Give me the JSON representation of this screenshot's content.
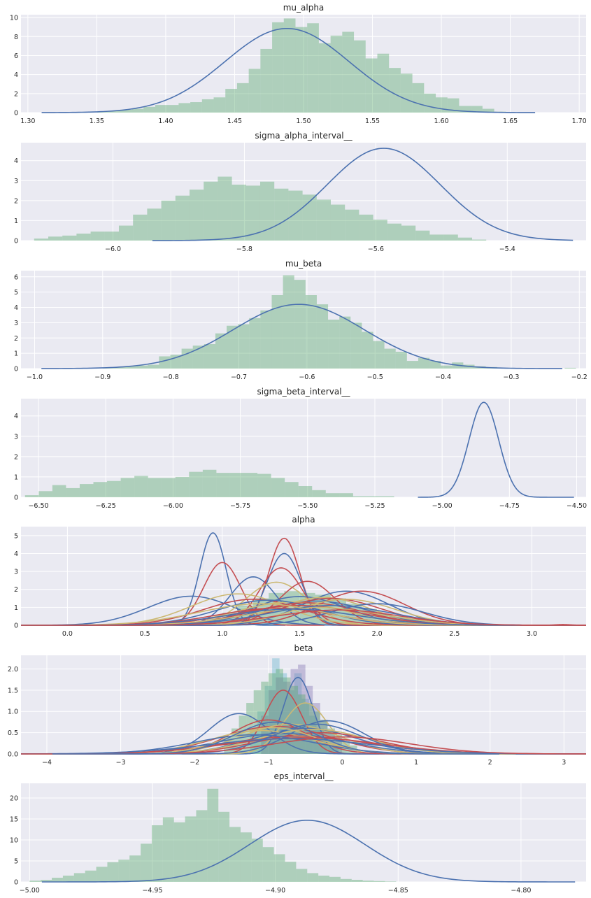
{
  "colors": {
    "axes_bg": "#eaeaf2",
    "grid": "#ffffff",
    "hist": "#55a868",
    "kde": "#4c72b0",
    "red": "#c44e52",
    "yellow": "#ccb974",
    "purple": "#8172b2",
    "cyan": "#64b5cd"
  },
  "chart_data": [
    {
      "type": "histogram+kde",
      "title": "mu_alpha",
      "xlim": [
        1.295,
        1.705
      ],
      "ylim": [
        0,
        10.3
      ],
      "xticks": [
        1.3,
        1.35,
        1.4,
        1.45,
        1.5,
        1.55,
        1.6,
        1.65,
        1.7
      ],
      "xtick_labels": [
        "1.30",
        "1.35",
        "1.40",
        "1.45",
        "1.50",
        "1.55",
        "1.60",
        "1.65",
        "1.70"
      ],
      "yticks": [
        0,
        2,
        4,
        6,
        8,
        10
      ],
      "ytick_labels": [
        "0",
        "2",
        "4",
        "6",
        "8",
        "10"
      ],
      "grid": true,
      "hist": {
        "bin_start": 1.35,
        "bin_width": 0.00848,
        "heights": [
          0.1,
          0.2,
          0.3,
          0.4,
          0.6,
          0.8,
          0.8,
          1.0,
          1.1,
          1.4,
          1.6,
          2.5,
          3.1,
          4.6,
          6.7,
          9.5,
          9.9,
          9.0,
          9.4,
          7.3,
          8.1,
          8.5,
          7.6,
          5.7,
          6.2,
          4.7,
          4.1,
          3.1,
          2.0,
          1.6,
          1.5,
          0.7,
          0.7,
          0.4,
          0.1,
          0.0,
          0.0,
          0.0,
          0.0,
          0.0,
          0.0,
          0.0,
          0.0,
          0.0,
          0.0,
          0.0,
          0.0,
          0.0,
          0.1
        ]
      },
      "kde": [
        {
          "type": "gaussian",
          "mean": 1.488,
          "sd": 0.045,
          "peak": 8.85,
          "x_range": [
            1.31,
            1.668
          ]
        }
      ]
    },
    {
      "type": "histogram+kde",
      "title": "sigma_alpha_interval__",
      "xlim": [
        -6.14,
        -5.28
      ],
      "ylim": [
        0,
        4.9
      ],
      "xticks": [
        -6.0,
        -5.8,
        -5.6,
        -5.4
      ],
      "xtick_labels": [
        "−6.0",
        "−5.8",
        "−5.6",
        "−5.4"
      ],
      "yticks": [
        0,
        1,
        2,
        3,
        4
      ],
      "ytick_labels": [
        "0",
        "1",
        "2",
        "3",
        "4"
      ],
      "grid": true,
      "hist": {
        "bin_start": -6.12,
        "bin_width": 0.0215,
        "heights": [
          0.1,
          0.2,
          0.25,
          0.35,
          0.45,
          0.45,
          0.75,
          1.3,
          1.6,
          2.0,
          2.25,
          2.55,
          2.95,
          3.2,
          2.8,
          2.75,
          2.95,
          2.6,
          2.5,
          2.3,
          2.05,
          1.8,
          1.55,
          1.3,
          1.05,
          0.85,
          0.75,
          0.5,
          0.3,
          0.3,
          0.15,
          0.05
        ]
      },
      "kde": [
        {
          "type": "gaussian",
          "mean": -5.588,
          "sd": 0.086,
          "peak": 4.62,
          "x_range": [
            -5.94,
            -5.3
          ]
        }
      ]
    },
    {
      "type": "histogram+kde",
      "title": "mu_beta",
      "xlim": [
        -1.02,
        -0.19
      ],
      "ylim": [
        0,
        6.4
      ],
      "xticks": [
        -1.0,
        -0.9,
        -0.8,
        -0.7,
        -0.6,
        -0.5,
        -0.4,
        -0.3,
        -0.2
      ],
      "xtick_labels": [
        "−1.0",
        "−0.9",
        "−0.8",
        "−0.7",
        "−0.6",
        "−0.5",
        "−0.4",
        "−0.3",
        "−0.2"
      ],
      "yticks": [
        0,
        1,
        2,
        3,
        4,
        5,
        6
      ],
      "ytick_labels": [
        "0",
        "1",
        "2",
        "3",
        "4",
        "5",
        "6"
      ],
      "grid": true,
      "hist": {
        "bin_start": -0.9,
        "bin_width": 0.01655,
        "heights": [
          0.05,
          0.1,
          0.15,
          0.2,
          0.25,
          0.8,
          0.9,
          1.3,
          1.5,
          1.6,
          2.3,
          2.8,
          2.9,
          3.3,
          3.8,
          4.8,
          6.1,
          5.8,
          4.8,
          4.2,
          3.2,
          3.4,
          3.0,
          2.4,
          1.8,
          1.3,
          1.1,
          0.5,
          0.7,
          0.5,
          0.2,
          0.4,
          0.25,
          0.15,
          0.1,
          0.05,
          0.0,
          0.0,
          0.0,
          0.0,
          0.0,
          0.05
        ]
      },
      "kde": [
        {
          "type": "gaussian",
          "mean": -0.612,
          "sd": 0.096,
          "peak": 4.2,
          "x_range": [
            -0.99,
            -0.225
          ]
        }
      ]
    },
    {
      "type": "histogram+kde",
      "title": "sigma_beta_interval__",
      "xlim": [
        -6.565,
        -4.465
      ],
      "ylim": [
        0,
        4.85
      ],
      "xticks": [
        -6.5,
        -6.25,
        -6.0,
        -5.75,
        -5.5,
        -5.25,
        -5.0,
        -4.75,
        -4.5
      ],
      "xtick_labels": [
        "−6.50",
        "−6.25",
        "−6.00",
        "−5.75",
        "−5.50",
        "−5.25",
        "−5.00",
        "−4.75",
        "−4.50"
      ],
      "yticks": [
        0,
        1,
        2,
        3,
        4
      ],
      "ytick_labels": [
        "0",
        "1",
        "2",
        "3",
        "4"
      ],
      "grid": true,
      "hist": {
        "bin_start": -6.55,
        "bin_width": 0.0508,
        "heights": [
          0.1,
          0.3,
          0.6,
          0.45,
          0.65,
          0.75,
          0.8,
          0.95,
          1.05,
          0.95,
          0.95,
          1.0,
          1.25,
          1.35,
          1.2,
          1.2,
          1.2,
          1.15,
          0.95,
          0.75,
          0.55,
          0.35,
          0.2,
          0.2,
          0.05,
          0.05,
          0.05
        ]
      },
      "kde": [
        {
          "type": "gaussian",
          "mean": -4.845,
          "sd": 0.055,
          "peak": 4.67,
          "x_range": [
            -5.09,
            -4.51
          ]
        }
      ]
    },
    {
      "type": "histogram+kde",
      "title": "alpha",
      "xlim": [
        -0.3,
        3.35
      ],
      "ylim": [
        0,
        5.5
      ],
      "xticks": [
        0.0,
        0.5,
        1.0,
        1.5,
        2.0,
        2.5,
        3.0
      ],
      "xtick_labels": [
        "0.0",
        "0.5",
        "1.0",
        "1.5",
        "2.0",
        "2.5",
        "3.0"
      ],
      "yticks": [
        0,
        1,
        2,
        3,
        4,
        5
      ],
      "ytick_labels": [
        "0",
        "1",
        "2",
        "3",
        "4",
        "5"
      ],
      "grid": true,
      "hist": {
        "bin_start": 0.8,
        "bin_width": 0.1,
        "heights": [
          0.2,
          0.4,
          0.7,
          1.1,
          1.5,
          1.8,
          1.9,
          1.8,
          1.7,
          1.5,
          1.2,
          0.9,
          0.6,
          0.5,
          0.4,
          0.3,
          0.2,
          0.15,
          0.1,
          0.05
        ]
      },
      "kde": [
        {
          "color": "kde",
          "mean": 0.8,
          "sd": 0.28,
          "peak": 1.62
        },
        {
          "color": "kde",
          "mean": 0.94,
          "sd": 0.085,
          "peak": 5.15
        },
        {
          "color": "red",
          "mean": 1.0,
          "sd": 0.12,
          "peak": 3.5
        },
        {
          "color": "kde",
          "mean": 1.2,
          "sd": 0.15,
          "peak": 2.7
        },
        {
          "color": "red",
          "mean": 1.4,
          "sd": 0.1,
          "peak": 4.85
        },
        {
          "color": "kde",
          "mean": 1.4,
          "sd": 0.11,
          "peak": 4.0
        },
        {
          "color": "red",
          "mean": 1.38,
          "sd": 0.14,
          "peak": 3.2
        },
        {
          "color": "yellow",
          "mean": 1.35,
          "sd": 0.2,
          "peak": 2.4
        },
        {
          "color": "red",
          "mean": 1.55,
          "sd": 0.18,
          "peak": 2.45
        },
        {
          "color": "kde",
          "mean": 1.8,
          "sd": 0.28,
          "peak": 1.9
        },
        {
          "color": "red",
          "mean": 1.9,
          "sd": 0.28,
          "peak": 1.9
        },
        {
          "color": "yellow",
          "mean": 1.1,
          "sd": 0.3,
          "peak": 1.75
        },
        {
          "color": "red",
          "mean": 1.2,
          "sd": 0.32,
          "peak": 1.45
        },
        {
          "color": "kde",
          "mean": 1.5,
          "sd": 0.3,
          "peak": 1.6
        },
        {
          "color": "yellow",
          "mean": 1.65,
          "sd": 0.3,
          "peak": 1.55
        },
        {
          "color": "kde",
          "mean": 1.6,
          "sd": 0.35,
          "peak": 1.35
        },
        {
          "color": "red",
          "mean": 1.7,
          "sd": 0.33,
          "peak": 1.5
        },
        {
          "color": "yellow",
          "mean": 1.45,
          "sd": 0.35,
          "peak": 1.3
        },
        {
          "color": "kde",
          "mean": 1.3,
          "sd": 0.33,
          "peak": 1.4
        },
        {
          "color": "red",
          "mean": 1.55,
          "sd": 0.36,
          "peak": 1.25
        },
        {
          "color": "yellow",
          "mean": 1.8,
          "sd": 0.32,
          "peak": 1.45
        },
        {
          "color": "kde",
          "mean": 2.0,
          "sd": 0.3,
          "peak": 1.2
        },
        {
          "color": "red",
          "mean": 1.5,
          "sd": 0.4,
          "peak": 1.1
        },
        {
          "color": "yellow",
          "mean": 1.6,
          "sd": 0.42,
          "peak": 1.0
        },
        {
          "color": "kde",
          "mean": 1.7,
          "sd": 0.4,
          "peak": 1.1
        },
        {
          "color": "red",
          "mean": 1.35,
          "sd": 0.38,
          "peak": 0.95
        },
        {
          "color": "yellow",
          "mean": 1.25,
          "sd": 0.4,
          "peak": 1.2
        },
        {
          "color": "kde",
          "mean": 1.45,
          "sd": 0.42,
          "peak": 0.9
        },
        {
          "color": "red",
          "mean": 1.75,
          "sd": 0.4,
          "peak": 0.85
        },
        {
          "color": "red",
          "mean": 3.2,
          "sd": 0.05,
          "peak": 0.04
        }
      ]
    },
    {
      "type": "histogram+kde",
      "title": "beta",
      "xlim": [
        -4.35,
        3.3
      ],
      "ylim": [
        0,
        2.32
      ],
      "xticks": [
        -4,
        -3,
        -2,
        -1,
        0,
        1,
        2,
        3
      ],
      "xtick_labels": [
        "−4",
        "−3",
        "−2",
        "−1",
        "0",
        "1",
        "2",
        "3"
      ],
      "yticks": [
        0.0,
        0.5,
        1.0,
        1.5,
        2.0
      ],
      "ytick_labels": [
        "0.0",
        "0.5",
        "1.0",
        "1.5",
        "2.0"
      ],
      "grid": true,
      "hist_groups": [
        {
          "color": "cyan",
          "bin_start": -1.25,
          "bin_width": 0.1,
          "heights": [
            0.6,
            1.0,
            1.6,
            2.25,
            1.9,
            1.5,
            1.9,
            1.3,
            0.9,
            0.6,
            0.4,
            0.2
          ]
        },
        {
          "color": "purple",
          "bin_start": -1.1,
          "bin_width": 0.1,
          "heights": [
            0.9,
            1.5,
            1.8,
            1.7,
            2.0,
            2.1,
            1.6,
            1.2,
            0.8,
            0.5,
            0.3
          ]
        },
        {
          "color": "hist",
          "bin_start": -1.6,
          "bin_width": 0.1,
          "heights": [
            0.4,
            0.6,
            0.9,
            1.2,
            1.5,
            1.7,
            1.9,
            2.0,
            1.8,
            1.6,
            1.4,
            1.2,
            1.0,
            0.8,
            0.6,
            0.45,
            0.3,
            0.2
          ]
        }
      ],
      "kde": [
        {
          "color": "kde",
          "mean": -0.6,
          "sd": 0.2,
          "peak": 1.8
        },
        {
          "color": "red",
          "mean": -0.8,
          "sd": 0.25,
          "peak": 1.5
        },
        {
          "color": "yellow",
          "mean": -0.5,
          "sd": 0.3,
          "peak": 1.2
        },
        {
          "color": "kde",
          "mean": -1.4,
          "sd": 0.4,
          "peak": 0.95
        },
        {
          "color": "red",
          "mean": -1.0,
          "sd": 0.5,
          "peak": 0.8
        },
        {
          "color": "kde",
          "mean": -0.2,
          "sd": 0.5,
          "peak": 0.78
        },
        {
          "color": "red",
          "mean": -0.9,
          "sd": 0.75,
          "peak": 0.65
        },
        {
          "color": "yellow",
          "mean": -0.7,
          "sd": 0.65,
          "peak": 0.7
        },
        {
          "color": "kde",
          "mean": -0.5,
          "sd": 0.7,
          "peak": 0.6
        },
        {
          "color": "red",
          "mean": -0.3,
          "sd": 0.8,
          "peak": 0.5
        },
        {
          "color": "yellow",
          "mean": -1.1,
          "sd": 0.7,
          "peak": 0.55
        },
        {
          "color": "kde",
          "mean": -0.8,
          "sd": 0.85,
          "peak": 0.48
        },
        {
          "color": "red",
          "mean": -0.6,
          "sd": 0.95,
          "peak": 0.42
        },
        {
          "color": "yellow",
          "mean": -0.4,
          "sd": 0.75,
          "peak": 0.58
        },
        {
          "color": "kde",
          "mean": -1.2,
          "sd": 0.8,
          "peak": 0.45
        },
        {
          "color": "red",
          "mean": -0.5,
          "sd": 1.05,
          "peak": 0.38
        },
        {
          "color": "kde",
          "mean": -0.35,
          "sd": 0.6,
          "peak": 0.7
        },
        {
          "color": "yellow",
          "mean": -0.95,
          "sd": 0.6,
          "peak": 0.62
        },
        {
          "color": "kde",
          "mean": -0.7,
          "sd": 1.1,
          "peak": 0.36
        },
        {
          "color": "red",
          "mean": 0.0,
          "sd": 0.9,
          "peak": 0.4
        },
        {
          "color": "kde",
          "mean": -0.9,
          "sd": 0.55,
          "peak": 0.75
        }
      ]
    },
    {
      "type": "histogram+kde",
      "title": "eps_interval__",
      "xlim": [
        -5.0035,
        -4.7735
      ],
      "ylim": [
        0,
        23.5
      ],
      "xticks": [
        -5.0,
        -4.95,
        -4.9,
        -4.85,
        -4.8
      ],
      "xtick_labels": [
        "−5.00",
        "−4.95",
        "−4.90",
        "−4.85",
        "−4.80"
      ],
      "yticks": [
        0,
        5,
        10,
        15,
        20
      ],
      "ytick_labels": [
        "0",
        "5",
        "10",
        "15",
        "20"
      ],
      "grid": true,
      "hist": {
        "bin_start": -5.0,
        "bin_width": 0.00452,
        "heights": [
          0.3,
          0.5,
          1.0,
          1.5,
          2.1,
          2.7,
          3.6,
          4.7,
          5.3,
          6.3,
          9.1,
          13.5,
          15.4,
          14.2,
          15.6,
          17.1,
          22.2,
          16.7,
          13.1,
          11.8,
          10.3,
          8.3,
          6.6,
          4.8,
          3.1,
          2.1,
          1.5,
          1.2,
          0.7,
          0.5,
          0.3,
          0.2,
          0.1
        ]
      },
      "kde": [
        {
          "type": "gaussian",
          "mean": -4.887,
          "sd": 0.0235,
          "peak": 14.7,
          "x_range": [
            -4.995,
            -4.778
          ]
        }
      ]
    }
  ]
}
